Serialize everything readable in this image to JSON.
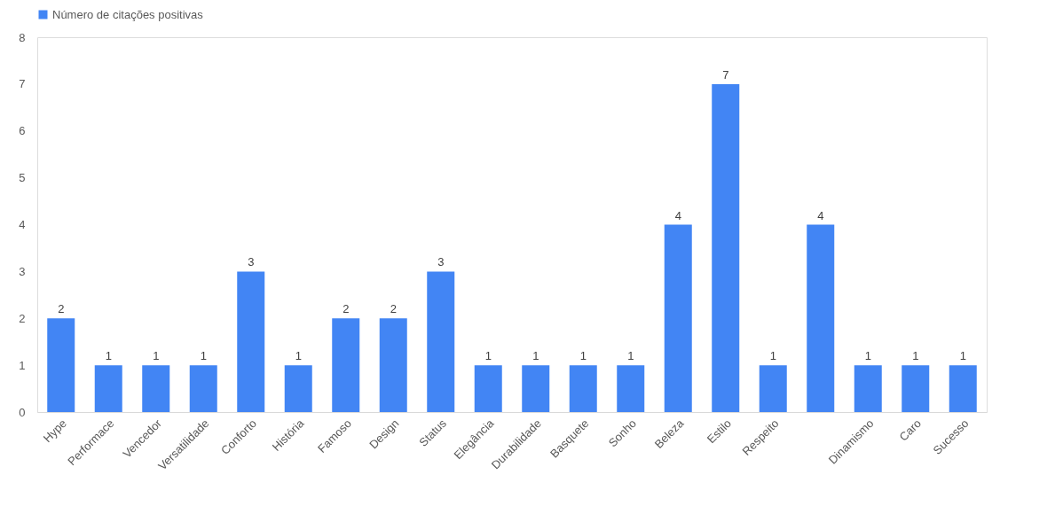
{
  "chart_data": {
    "type": "bar",
    "categories": [
      "Hype",
      "Performace",
      "Vencedor",
      "Versatilidade",
      "Conforto",
      "História",
      "Famoso",
      "Design",
      "Status",
      "Elegância",
      "Durabilidade",
      "Basquete",
      "Sonho",
      "Beleza",
      "Estilo",
      "Respeito",
      null,
      "Dinamismo",
      "Caro",
      "Sucesso"
    ],
    "series": [
      {
        "name": "Número de citações positivas",
        "color": "#4285f4",
        "values": [
          2,
          1,
          1,
          1,
          3,
          1,
          2,
          2,
          3,
          1,
          1,
          1,
          1,
          4,
          7,
          1,
          4,
          1,
          1,
          1
        ]
      }
    ],
    "ylim": [
      0,
      8
    ],
    "yticks": [
      0,
      1,
      2,
      3,
      4,
      5,
      6,
      7,
      8
    ],
    "data_labels": true,
    "grid": false,
    "legend": "top"
  }
}
